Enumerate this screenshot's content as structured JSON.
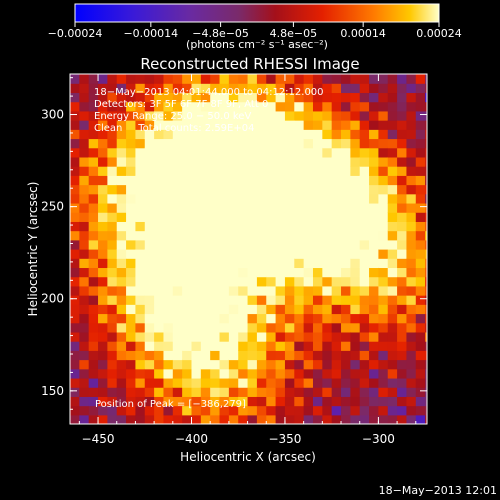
{
  "chart_data": {
    "type": "heatmap",
    "title": "Reconstructed RHESSI Image",
    "xlabel": "Heliocentric X (arcsec)",
    "ylabel": "Heliocentric Y (arcsec)",
    "xlim": [
      -465,
      -274
    ],
    "ylim": [
      132,
      322
    ],
    "xticks": [
      -450,
      -400,
      -350,
      -300
    ],
    "yticks": [
      150,
      200,
      250,
      300
    ],
    "x_tick_labels": [
      "−450",
      "−400",
      "−350",
      "−300"
    ],
    "y_tick_labels": [
      "150",
      "200",
      "250",
      "300"
    ],
    "colorbar": {
      "ticks": [
        -0.00024,
        -0.00014,
        -4.8e-05,
        4.8e-05,
        0.00014,
        0.00024
      ],
      "tick_labels": [
        "−0.00024",
        "−0.00014",
        "−4.8e−05",
        "4.8e−05",
        "0.00014",
        "0.00024"
      ],
      "range": [
        -0.00024,
        0.00024
      ],
      "unit_text": "(photons cm⁻² s⁻¹ asec⁻²)"
    },
    "annotations": [
      "18−May−2013 04:01:44.000 to 04:12:12.000",
      "Detectors: 3F 5F 6F 7F 8F 9F, Att 0",
      "Energy Range: 25.0 − 50.0 keV",
      "Clean     Total counts: 2.59E+04"
    ],
    "peak_label": "Position of Peak = [−386,279]",
    "colors": {
      "colormap": [
        "#0000ff",
        "#5a1fb4",
        "#7a2a6a",
        "#a4101a",
        "#e42000",
        "#ff7a00",
        "#ffc800",
        "#ffffc8"
      ]
    },
    "bright_regions": [
      {
        "x": -386,
        "y": 279,
        "level": 1.0
      },
      {
        "x": -330,
        "y": 247,
        "level": 0.95
      },
      {
        "x": -410,
        "y": 200,
        "level": 0.85
      },
      {
        "x": -365,
        "y": 255,
        "level": 0.8
      },
      {
        "x": -430,
        "y": 255,
        "level": 0.65
      },
      {
        "x": -385,
        "y": 160,
        "level": 0.6
      },
      {
        "x": -295,
        "y": 210,
        "level": 0.5
      }
    ]
  },
  "footer": {
    "timestamp": "18−May−2013 12:01"
  }
}
